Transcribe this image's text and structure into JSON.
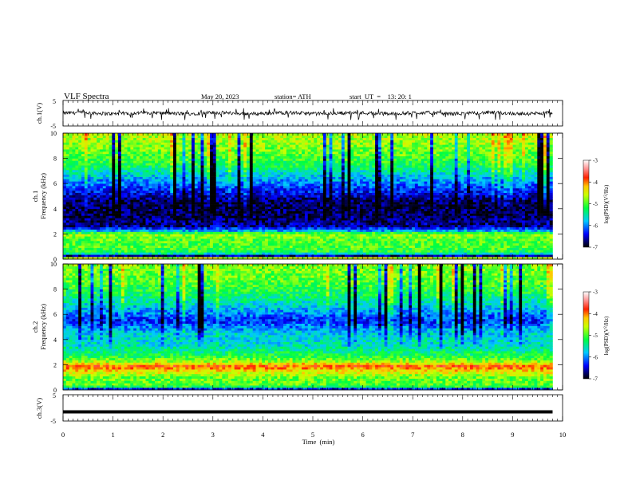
{
  "header": {
    "title": "VLF  Spectra",
    "date": "May 20, 2023",
    "station": "station= ATH",
    "start": "start  UT  =    13: 20: 1"
  },
  "chart_data": [
    {
      "type": "line",
      "panel": "ch1-waveform",
      "ylabel": "ch.1(V)",
      "ylim": [
        -5,
        5
      ],
      "ytick_labels": [
        "5",
        "-5"
      ],
      "xlim": [
        0,
        10
      ],
      "baseline": 0,
      "series": [
        {
          "description_values": "noisy signal fluctuating roughly between -1 and 1 V with spikes to about -2.5 V",
          "x_end": 9.8
        }
      ]
    },
    {
      "type": "heatmap",
      "panel": "ch1-spectrogram",
      "ylabel": "ch.1\nFrequency  (kHz)",
      "ylim": [
        0,
        10
      ],
      "ytick_labels": [
        "0",
        "2",
        "4",
        "6",
        "8",
        "10"
      ],
      "xlim": [
        0,
        10
      ],
      "x_end": 9.8,
      "colorbar": {
        "label": "log(PSD)(V²/Hz)",
        "range": [
          -7,
          -3
        ],
        "tick_labels": [
          "-3",
          "-4",
          "-5",
          "-6",
          "-7"
        ]
      },
      "frequency_profile_kHz_logpsd": [
        [
          0,
          -3.6
        ],
        [
          0.3,
          -6.9
        ],
        [
          0.5,
          -5.2
        ],
        [
          1.0,
          -5.0
        ],
        [
          1.5,
          -5.0
        ],
        [
          2.0,
          -4.7
        ],
        [
          2.2,
          -5.7
        ],
        [
          2.6,
          -6.6
        ],
        [
          3.5,
          -6.8
        ],
        [
          4.5,
          -6.8
        ],
        [
          5.5,
          -6.3
        ],
        [
          6.5,
          -5.8
        ],
        [
          7.5,
          -5.2
        ],
        [
          8.5,
          -4.9
        ],
        [
          10,
          -4.6
        ]
      ]
    },
    {
      "type": "heatmap",
      "panel": "ch2-spectrogram",
      "ylabel": "ch.2\nFrequency  (kHz)",
      "ylim": [
        0,
        10
      ],
      "ytick_labels": [
        "0",
        "2",
        "4",
        "6",
        "8",
        "10"
      ],
      "xlim": [
        0,
        10
      ],
      "x_end": 9.8,
      "colorbar": {
        "label": "log(PSD)(V²/Hz)",
        "range": [
          -7,
          -3
        ],
        "tick_labels": [
          "-3",
          "-4",
          "-5",
          "-6",
          "-7"
        ]
      },
      "frequency_profile_kHz_logpsd": [
        [
          0,
          -6.9
        ],
        [
          0.3,
          -5.0
        ],
        [
          1.0,
          -4.9
        ],
        [
          1.9,
          -3.9
        ],
        [
          2.2,
          -4.6
        ],
        [
          2.6,
          -5.1
        ],
        [
          3.5,
          -5.6
        ],
        [
          4.5,
          -5.7
        ],
        [
          5.5,
          -6.3
        ],
        [
          6.5,
          -5.8
        ],
        [
          7.5,
          -5.3
        ],
        [
          8.5,
          -5.0
        ],
        [
          10,
          -4.8
        ]
      ]
    },
    {
      "type": "line",
      "panel": "ch3-waveform",
      "ylabel": "ch.3(V)",
      "ylim": [
        -5,
        5
      ],
      "ytick_labels": [
        "5",
        "-5"
      ],
      "xlim": [
        0,
        10
      ],
      "series": [
        {
          "description_values": "flat saturated trace at about -1.5 V",
          "level": -1.5,
          "x_end": 9.8
        }
      ]
    }
  ],
  "xaxis": {
    "label": "Time  (min)",
    "range": [
      0,
      10
    ],
    "tick_labels": [
      "0",
      "1",
      "2",
      "3",
      "4",
      "5",
      "6",
      "7",
      "8",
      "9",
      "10"
    ]
  }
}
